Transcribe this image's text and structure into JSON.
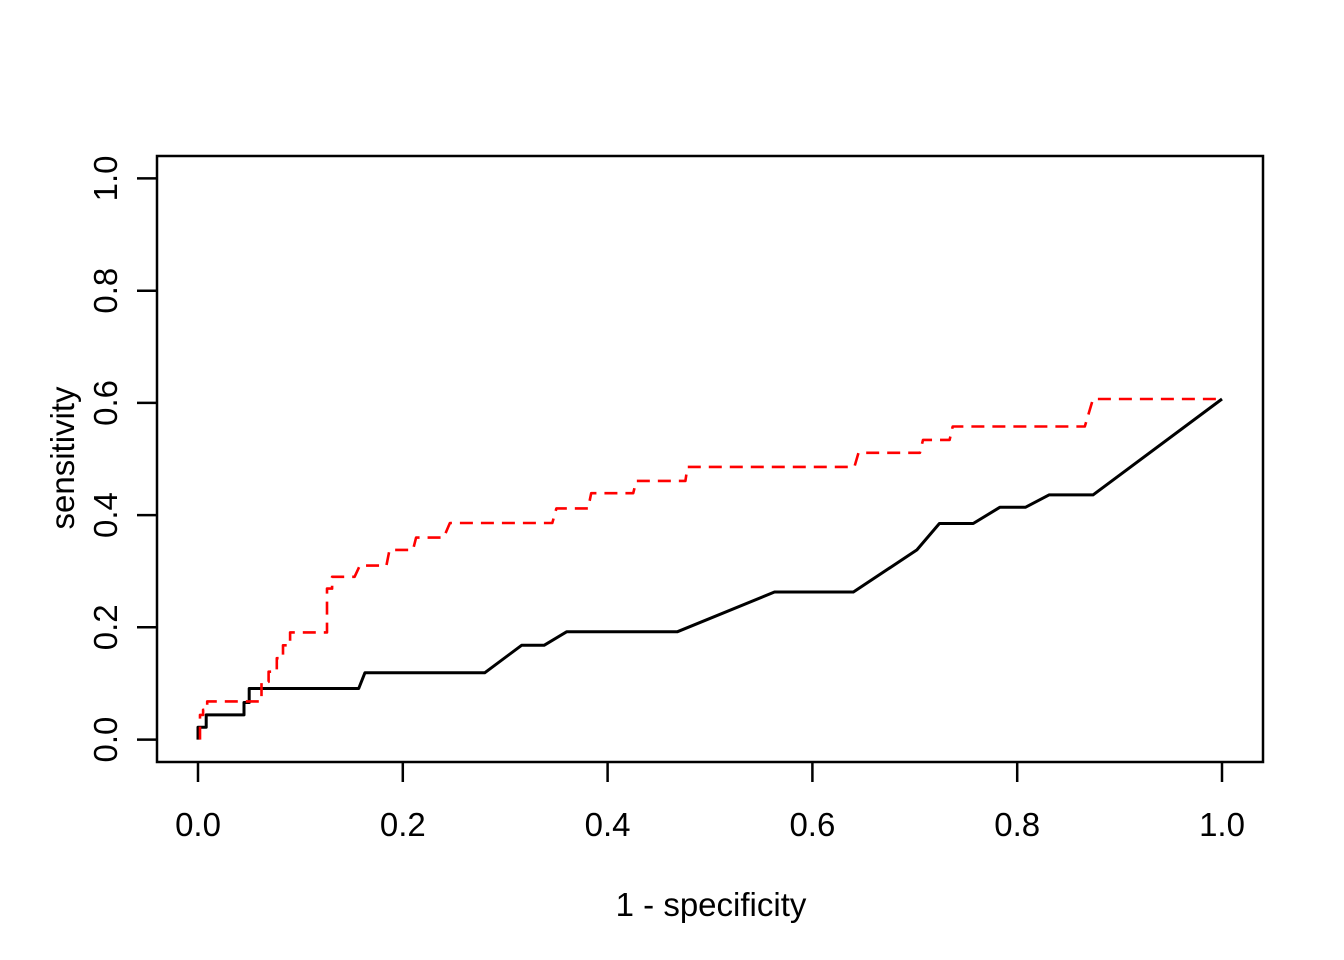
{
  "chart_data": {
    "type": "line",
    "subtype": "roc-step-curves",
    "title": "",
    "xlabel": "1 - specificity",
    "ylabel": "sensitivity",
    "xlim": [
      0,
      1
    ],
    "ylim": [
      0,
      1
    ],
    "x_ticks": [
      0,
      0.2,
      0.4,
      0.6,
      0.8,
      1.0
    ],
    "y_ticks": [
      0,
      0.2,
      0.4,
      0.6,
      0.8,
      1.0
    ],
    "x_tick_labels": [
      "0.0",
      "0.2",
      "0.4",
      "0.6",
      "0.8",
      "1.0"
    ],
    "y_tick_labels": [
      "0.0",
      "0.2",
      "0.4",
      "0.6",
      "0.8",
      "1.0"
    ],
    "grid": false,
    "legend": "none",
    "background_color": "#FFFFFF",
    "axis_color": "#000000",
    "series": [
      {
        "name": "roc-curve-solid-black",
        "color": "#000000",
        "line_style": "solid",
        "line_width": 3,
        "points": [
          [
            0,
            0
          ],
          [
            0,
            0.022
          ],
          [
            0.008,
            0.022
          ],
          [
            0.008,
            0.044
          ],
          [
            0.045,
            0.044
          ],
          [
            0.045,
            0.066
          ],
          [
            0.05,
            0.066
          ],
          [
            0.05,
            0.091
          ],
          [
            0.157,
            0.091
          ],
          [
            0.163,
            0.119
          ],
          [
            0.28,
            0.119
          ],
          [
            0.316,
            0.168
          ],
          [
            0.338,
            0.168
          ],
          [
            0.36,
            0.192
          ],
          [
            0.468,
            0.192
          ],
          [
            0.563,
            0.263
          ],
          [
            0.64,
            0.263
          ],
          [
            0.702,
            0.338
          ],
          [
            0.724,
            0.385
          ],
          [
            0.757,
            0.385
          ],
          [
            0.783,
            0.414
          ],
          [
            0.808,
            0.414
          ],
          [
            0.831,
            0.436
          ],
          [
            0.874,
            0.436
          ],
          [
            1,
            0.607
          ]
        ]
      },
      {
        "name": "roc-curve-dashed-red",
        "color": "#FF0000",
        "line_style": "dashed",
        "dash_pattern": [
          13,
          8
        ],
        "line_width": 2.6,
        "points": [
          [
            0.002,
            0
          ],
          [
            0.002,
            0.044
          ],
          [
            0.005,
            0.044
          ],
          [
            0.005,
            0.053
          ],
          [
            0.009,
            0.053
          ],
          [
            0.009,
            0.068
          ],
          [
            0.062,
            0.068
          ],
          [
            0.062,
            0.103
          ],
          [
            0.069,
            0.103
          ],
          [
            0.069,
            0.121
          ],
          [
            0.077,
            0.121
          ],
          [
            0.077,
            0.145
          ],
          [
            0.083,
            0.145
          ],
          [
            0.083,
            0.168
          ],
          [
            0.09,
            0.168
          ],
          [
            0.09,
            0.191
          ],
          [
            0.126,
            0.191
          ],
          [
            0.126,
            0.269
          ],
          [
            0.131,
            0.269
          ],
          [
            0.131,
            0.29
          ],
          [
            0.153,
            0.29
          ],
          [
            0.158,
            0.31
          ],
          [
            0.184,
            0.31
          ],
          [
            0.187,
            0.338
          ],
          [
            0.21,
            0.338
          ],
          [
            0.213,
            0.36
          ],
          [
            0.24,
            0.36
          ],
          [
            0.246,
            0.386
          ],
          [
            0.346,
            0.386
          ],
          [
            0.35,
            0.412
          ],
          [
            0.381,
            0.412
          ],
          [
            0.384,
            0.439
          ],
          [
            0.425,
            0.439
          ],
          [
            0.428,
            0.461
          ],
          [
            0.476,
            0.461
          ],
          [
            0.478,
            0.486
          ],
          [
            0.641,
            0.486
          ],
          [
            0.645,
            0.511
          ],
          [
            0.705,
            0.511
          ],
          [
            0.708,
            0.534
          ],
          [
            0.734,
            0.534
          ],
          [
            0.737,
            0.558
          ],
          [
            0.866,
            0.558
          ],
          [
            0.874,
            0.607
          ],
          [
            1,
            0.607
          ]
        ]
      }
    ]
  }
}
